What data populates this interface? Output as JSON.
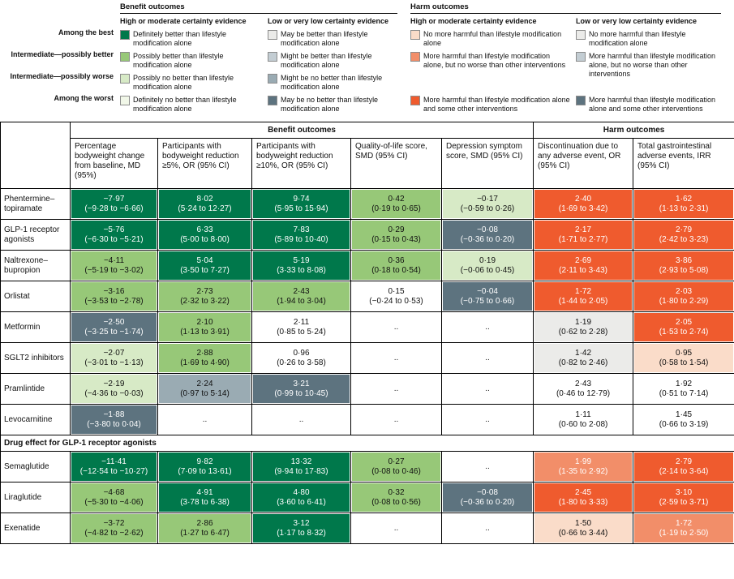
{
  "colors": {
    "g1": "#00784b",
    "g2": "#97c878",
    "g3": "#d7eac6",
    "g4": "#f1f7e8",
    "n1": "#ebebe9",
    "n2": "#c3cdd3",
    "n3": "#9aabb3",
    "n4": "#5d737f",
    "o1": "#fadcc9",
    "o2": "#f28e69",
    "o3": "#ef5b2e",
    "w": "#ffffff"
  },
  "legend": {
    "row_labels": [
      "Among the best",
      "Intermediate—possibly better",
      "Intermediate—possibly worse",
      "Among the worst"
    ],
    "benefit": {
      "title": "Benefit outcomes",
      "high": {
        "title": "High or moderate certainty evidence",
        "items": [
          {
            "label": "Definitely better than lifestyle modification alone",
            "color": "g1"
          },
          {
            "label": "Possibly better than lifestyle modification alone",
            "color": "g2"
          },
          {
            "label": "Possibly no better than lifestyle modification alone",
            "color": "g3"
          },
          {
            "label": "Definitely no better than lifestyle modification alone",
            "color": "g4"
          }
        ]
      },
      "low": {
        "title": "Low or very low certainty evidence",
        "items": [
          {
            "label": "May be better than lifestyle modification alone",
            "color": "n1"
          },
          {
            "label": "Might be better than lifestyle modification alone",
            "color": "n2"
          },
          {
            "label": "Might be no better than lifestyle modification alone",
            "color": "n3"
          },
          {
            "label": "May be no better than lifestyle modification alone",
            "color": "n4"
          }
        ]
      }
    },
    "harm": {
      "title": "Harm outcomes",
      "high": {
        "title": "High or moderate certainty evidence",
        "items": [
          {
            "label": "No more harmful than lifestyle modification alone",
            "color": "o1"
          },
          {
            "label": "More harmful than lifestyle modification alone, but no worse than other interventions",
            "color": "o2"
          },
          {
            "label": "More harmful than lifestyle modification alone and some other interventions",
            "color": "o3"
          }
        ]
      },
      "low": {
        "title": "Low or very low certainty evidence",
        "items": [
          {
            "label": "No more harmful than lifestyle modification alone",
            "color": "n1"
          },
          {
            "label": "More harmful than lifestyle modification alone, but no worse than other interventions",
            "color": "n2"
          },
          {
            "label": "More harmful than lifestyle modification alone and some other interventions",
            "color": "n4"
          }
        ]
      }
    }
  },
  "table": {
    "group_benefit": "Benefit outcomes",
    "group_harm": "Harm outcomes",
    "columns": [
      "Percentage bodyweight change from baseline, MD (95%)",
      "Participants with bodyweight reduction ≥5%, OR (95% CI)",
      "Participants with bodyweight reduction ≥10%, OR (95% CI)",
      "Quality-of-life score, SMD (95% CI)",
      "Depression symptom score, SMD (95% CI)",
      "Discontinuation due to any adverse event, OR (95% CI)",
      "Total gastrointestinal adverse events, IRR (95% CI)"
    ],
    "section_header": "Drug effect for GLP-1 receptor agonists",
    "rows": [
      {
        "drug": "Phentermine–topiramate",
        "cells": [
          {
            "v": "−7·97",
            "ci": "(−9·28 to −6·66)",
            "c": "g1"
          },
          {
            "v": "8·02",
            "ci": "(5·24 to 12·27)",
            "c": "g1"
          },
          {
            "v": "9·74",
            "ci": "(5·95 to 15·94)",
            "c": "g1"
          },
          {
            "v": "0·42",
            "ci": "(0·19 to 0·65)",
            "c": "g2"
          },
          {
            "v": "−0·17",
            "ci": "(−0·59 to 0·26)",
            "c": "g3"
          },
          {
            "v": "2·40",
            "ci": "(1·69 to 3·42)",
            "c": "o3"
          },
          {
            "v": "1·62",
            "ci": "(1·13 to 2·31)",
            "c": "o3"
          }
        ]
      },
      {
        "drug": "GLP-1 receptor agonists",
        "cells": [
          {
            "v": "−5·76",
            "ci": "(−6·30 to −5·21)",
            "c": "g1"
          },
          {
            "v": "6·33",
            "ci": "(5·00 to 8·00)",
            "c": "g1"
          },
          {
            "v": "7·83",
            "ci": "(5·89 to 10·40)",
            "c": "g1"
          },
          {
            "v": "0·29",
            "ci": "(0·15 to 0·43)",
            "c": "g2"
          },
          {
            "v": "−0·08",
            "ci": "(−0·36 to 0·20)",
            "c": "n4"
          },
          {
            "v": "2·17",
            "ci": "(1·71 to 2·77)",
            "c": "o3"
          },
          {
            "v": "2·79",
            "ci": "(2·42 to 3·23)",
            "c": "o3"
          }
        ]
      },
      {
        "drug": "Naltrexone–bupropion",
        "cells": [
          {
            "v": "−4·11",
            "ci": "(−5·19 to −3·02)",
            "c": "g2"
          },
          {
            "v": "5·04",
            "ci": "(3·50 to 7·27)",
            "c": "g1"
          },
          {
            "v": "5·19",
            "ci": "(3·33 to 8·08)",
            "c": "g1"
          },
          {
            "v": "0·36",
            "ci": "(0·18 to 0·54)",
            "c": "g2"
          },
          {
            "v": "0·19",
            "ci": "(−0·06 to 0·45)",
            "c": "g3"
          },
          {
            "v": "2·69",
            "ci": "(2·11 to 3·43)",
            "c": "o3"
          },
          {
            "v": "3·86",
            "ci": "(2·93 to 5·08)",
            "c": "o3"
          }
        ]
      },
      {
        "drug": "Orlistat",
        "cells": [
          {
            "v": "−3·16",
            "ci": "(−3·53 to −2·78)",
            "c": "g2"
          },
          {
            "v": "2·73",
            "ci": "(2·32 to 3·22)",
            "c": "g2"
          },
          {
            "v": "2·43",
            "ci": "(1·94 to 3·04)",
            "c": "g2"
          },
          {
            "v": "0·15",
            "ci": "(−0·24 to 0·53)",
            "c": "w"
          },
          {
            "v": "−0·04",
            "ci": "(−0·75 to 0·66)",
            "c": "n4"
          },
          {
            "v": "1·72",
            "ci": "(1·44 to 2·05)",
            "c": "o3"
          },
          {
            "v": "2·03",
            "ci": "(1·80 to 2·29)",
            "c": "o3"
          }
        ]
      },
      {
        "drug": "Metformin",
        "cells": [
          {
            "v": "−2·50",
            "ci": "(−3·25 to −1·74)",
            "c": "n4"
          },
          {
            "v": "2·10",
            "ci": "(1·13 to 3·91)",
            "c": "g2"
          },
          {
            "v": "2·11",
            "ci": "(0·85 to 5·24)",
            "c": "w"
          },
          {
            "v": "..",
            "ci": "",
            "c": "w"
          },
          {
            "v": "..",
            "ci": "",
            "c": "w"
          },
          {
            "v": "1·19",
            "ci": "(0·62 to 2·28)",
            "c": "n1"
          },
          {
            "v": "2·05",
            "ci": "(1·53 to 2·74)",
            "c": "o3"
          }
        ]
      },
      {
        "drug": "SGLT2 inhibitors",
        "cells": [
          {
            "v": "−2·07",
            "ci": "(−3·01 to −1·13)",
            "c": "g3"
          },
          {
            "v": "2·88",
            "ci": "(1·69 to 4·90)",
            "c": "g2"
          },
          {
            "v": "0·96",
            "ci": "(0·26 to 3·58)",
            "c": "w"
          },
          {
            "v": "..",
            "ci": "",
            "c": "w"
          },
          {
            "v": "..",
            "ci": "",
            "c": "w"
          },
          {
            "v": "1·42",
            "ci": "(0·82 to 2·46)",
            "c": "n1"
          },
          {
            "v": "0·95",
            "ci": "(0·58 to 1·54)",
            "c": "o1"
          }
        ]
      },
      {
        "drug": "Pramlintide",
        "cells": [
          {
            "v": "−2·19",
            "ci": "(−4·36 to −0·03)",
            "c": "g3"
          },
          {
            "v": "2·24",
            "ci": "(0·97 to 5·14)",
            "c": "n3"
          },
          {
            "v": "3·21",
            "ci": "(0·99 to 10·45)",
            "c": "n4"
          },
          {
            "v": "..",
            "ci": "",
            "c": "w"
          },
          {
            "v": "..",
            "ci": "",
            "c": "w"
          },
          {
            "v": "2·43",
            "ci": "(0·46 to 12·79)",
            "c": "w"
          },
          {
            "v": "1·92",
            "ci": "(0·51 to 7·14)",
            "c": "w"
          }
        ]
      },
      {
        "drug": "Levocarnitine",
        "cells": [
          {
            "v": "−1·88",
            "ci": "(−3·80 to 0·04)",
            "c": "n4"
          },
          {
            "v": "..",
            "ci": "",
            "c": "w"
          },
          {
            "v": "..",
            "ci": "",
            "c": "w"
          },
          {
            "v": "..",
            "ci": "",
            "c": "w"
          },
          {
            "v": "..",
            "ci": "",
            "c": "w"
          },
          {
            "v": "1·11",
            "ci": "(0·60 to 2·08)",
            "c": "w"
          },
          {
            "v": "1·45",
            "ci": "(0·66 to 3·19)",
            "c": "w"
          }
        ]
      }
    ],
    "glp1_rows": [
      {
        "drug": "Semaglutide",
        "cells": [
          {
            "v": "−11·41",
            "ci": "(−12·54 to −10·27)",
            "c": "g1"
          },
          {
            "v": "9·82",
            "ci": "(7·09 to 13·61)",
            "c": "g1"
          },
          {
            "v": "13·32",
            "ci": "(9·94 to 17·83)",
            "c": "g1"
          },
          {
            "v": "0·27",
            "ci": "(0·08 to 0·46)",
            "c": "g2"
          },
          {
            "v": "..",
            "ci": "",
            "c": "w"
          },
          {
            "v": "1·99",
            "ci": "(1·35 to 2·92)",
            "c": "o2"
          },
          {
            "v": "2·79",
            "ci": "(2·14 to 3·64)",
            "c": "o3"
          }
        ]
      },
      {
        "drug": "Liraglutide",
        "cells": [
          {
            "v": "−4·68",
            "ci": "(−5·30 to −4·06)",
            "c": "g2"
          },
          {
            "v": "4·91",
            "ci": "(3·78 to 6·38)",
            "c": "g1"
          },
          {
            "v": "4·80",
            "ci": "(3·60 to 6·41)",
            "c": "g1"
          },
          {
            "v": "0·32",
            "ci": "(0·08 to 0·56)",
            "c": "g2"
          },
          {
            "v": "−0·08",
            "ci": "(−0·36 to 0·20)",
            "c": "n4"
          },
          {
            "v": "2·45",
            "ci": "(1·80 to 3·33)",
            "c": "o3"
          },
          {
            "v": "3·10",
            "ci": "(2·59 to 3·71)",
            "c": "o3"
          }
        ]
      },
      {
        "drug": "Exenatide",
        "cells": [
          {
            "v": "−3·72",
            "ci": "(−4·82 to −2·62)",
            "c": "g2"
          },
          {
            "v": "2·86",
            "ci": "(1·27 to 6·47)",
            "c": "g2"
          },
          {
            "v": "3·12",
            "ci": "(1·17 to 8·32)",
            "c": "g1"
          },
          {
            "v": "..",
            "ci": "",
            "c": "w"
          },
          {
            "v": "..",
            "ci": "",
            "c": "w"
          },
          {
            "v": "1·50",
            "ci": "(0·66 to 3·44)",
            "c": "o1"
          },
          {
            "v": "1·72",
            "ci": "(1·19 to 2·50)",
            "c": "o2"
          }
        ]
      }
    ]
  }
}
